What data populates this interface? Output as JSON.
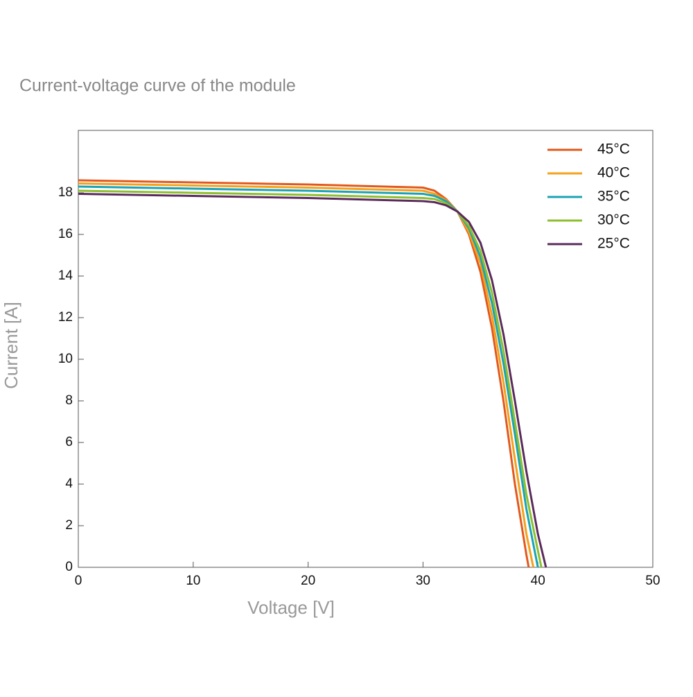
{
  "chart_data": {
    "type": "line",
    "title": "Current-voltage curve of the module",
    "x_label": "Voltage [V]",
    "y_label": "Current [A]",
    "xlim": [
      0,
      50
    ],
    "xticks": [
      0,
      10,
      20,
      30,
      40,
      50
    ],
    "ylim": [
      0,
      21
    ],
    "yticks": [
      0,
      2,
      4,
      6,
      8,
      10,
      12,
      14,
      16,
      18
    ],
    "legend": "upper-right",
    "series": [
      {
        "name": "45°C",
        "color": "#e2581c",
        "x": [
          0,
          10,
          20,
          30,
          31,
          32,
          33,
          34,
          35,
          36,
          37,
          38,
          39,
          39.2
        ],
        "values": [
          18.6,
          18.5,
          18.4,
          18.25,
          18.1,
          17.7,
          17.1,
          16.0,
          14.2,
          11.5,
          8.0,
          4.0,
          0.6,
          0
        ]
      },
      {
        "name": "40°C",
        "color": "#f4a01c",
        "x": [
          0,
          10,
          20,
          30,
          31,
          32,
          33,
          34,
          35,
          36,
          37,
          38,
          39,
          39.6
        ],
        "values": [
          18.45,
          18.35,
          18.25,
          18.1,
          17.95,
          17.65,
          17.1,
          16.1,
          14.6,
          12.1,
          8.9,
          5.2,
          1.6,
          0
        ]
      },
      {
        "name": "35°C",
        "color": "#1aa3b5",
        "x": [
          0,
          10,
          20,
          30,
          31,
          32,
          33,
          34,
          35,
          36,
          37,
          38,
          39,
          40
        ],
        "values": [
          18.3,
          18.2,
          18.1,
          17.95,
          17.85,
          17.6,
          17.1,
          16.3,
          14.9,
          12.7,
          9.8,
          6.4,
          2.8,
          0
        ]
      },
      {
        "name": "30°C",
        "color": "#8dbf2e",
        "x": [
          0,
          10,
          20,
          30,
          31,
          32,
          33,
          34,
          35,
          36,
          37,
          38,
          39,
          40,
          40.3
        ],
        "values": [
          18.1,
          18.0,
          17.9,
          17.75,
          17.7,
          17.5,
          17.1,
          16.4,
          15.2,
          13.2,
          10.4,
          7.0,
          3.5,
          0.8,
          0
        ]
      },
      {
        "name": "25°C",
        "color": "#5a2a5c",
        "x": [
          0,
          10,
          20,
          30,
          31,
          32,
          33,
          34,
          35,
          36,
          37,
          38,
          39,
          40,
          40.7
        ],
        "values": [
          17.95,
          17.85,
          17.75,
          17.6,
          17.55,
          17.4,
          17.1,
          16.6,
          15.6,
          13.8,
          11.2,
          8.0,
          4.6,
          1.6,
          0
        ]
      }
    ]
  }
}
